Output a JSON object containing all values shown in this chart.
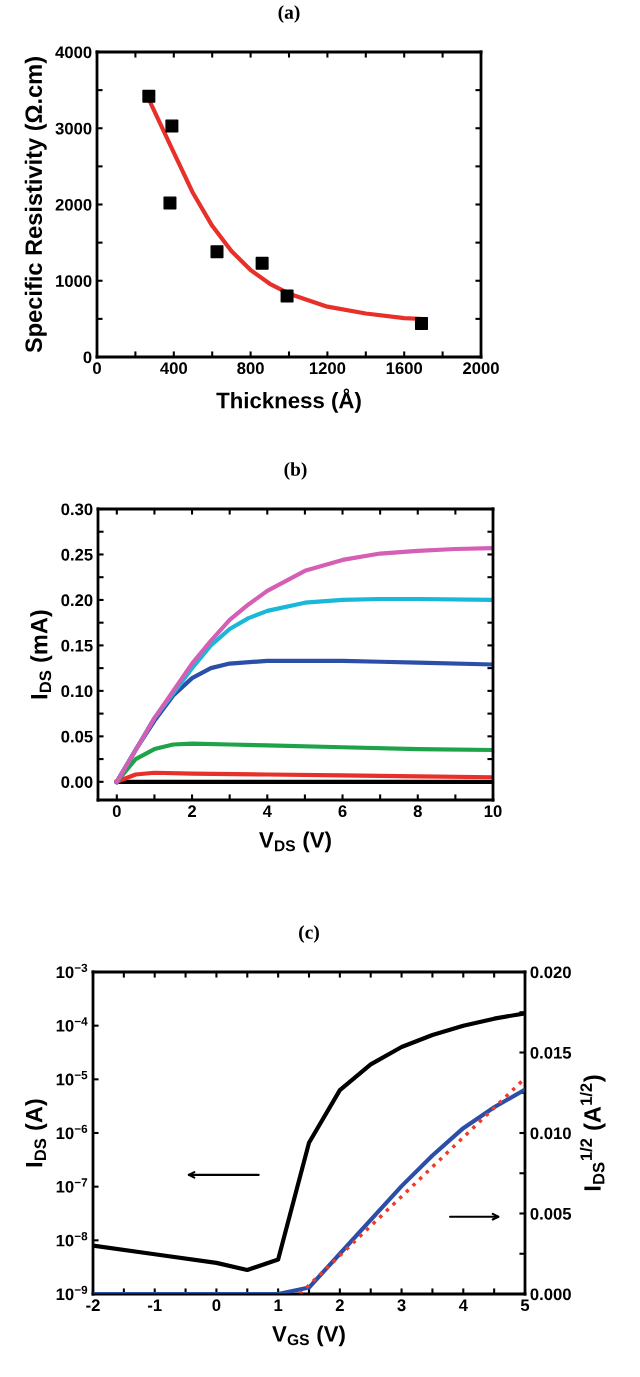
{
  "chart_data": [
    {
      "type": "scatter",
      "title": "(a)",
      "xlabel": "Thickness (Å)",
      "ylabel": "Specific Resistivity (Ω.cm)",
      "grid": false,
      "xlim": [
        0,
        2000
      ],
      "ylim": [
        0,
        4000
      ],
      "xticks": [
        0,
        {
          "value": 200,
          "label": null
        },
        400,
        {
          "value": 600,
          "label": null
        },
        800,
        {
          "value": 1000,
          "label": null
        },
        1200,
        {
          "value": 1400,
          "label": null
        },
        1600,
        {
          "value": 1800,
          "label": null
        },
        2000
      ],
      "yticks": [
        0,
        {
          "value": 500,
          "label": null
        },
        1000,
        {
          "value": 1500,
          "label": null
        },
        2000,
        {
          "value": 2500,
          "label": null
        },
        3000,
        {
          "value": 3500,
          "label": null
        },
        4000
      ],
      "series": [
        {
          "type": "scatter",
          "marker": "square",
          "color": "#000000",
          "x": [
            270,
            390,
            380,
            625,
            860,
            990,
            1690
          ],
          "values": [
            3420,
            3030,
            2020,
            1380,
            1230,
            800,
            440
          ]
        },
        {
          "type": "line",
          "marker": "none",
          "color": "#e8302a",
          "x": [
            270,
            350,
            400,
            500,
            600,
            700,
            800,
            900,
            1000,
            1200,
            1400,
            1600,
            1690
          ],
          "values": [
            3380,
            2950,
            2680,
            2150,
            1720,
            1390,
            1140,
            960,
            830,
            660,
            570,
            510,
            500
          ]
        }
      ]
    },
    {
      "type": "line",
      "title": "(b)",
      "xlabel": "V$_{DS}$ (V)",
      "ylabel": "I$_{DS}$ (mA)",
      "grid": false,
      "marker": "none",
      "line_style": "solid",
      "xlim": [
        -0.5,
        10
      ],
      "ylim": [
        -0.02,
        0.3
      ],
      "xticks": [
        0,
        {
          "value": 1,
          "label": null
        },
        2,
        {
          "value": 3,
          "label": null
        },
        4,
        {
          "value": 5,
          "label": null
        },
        6,
        {
          "value": 7,
          "label": null
        },
        8,
        {
          "value": 9,
          "label": null
        },
        10
      ],
      "yticks": [
        {
          "value": 0,
          "label": "0.00"
        },
        {
          "value": 0.025,
          "label": null
        },
        {
          "value": 0.05,
          "label": "0.05"
        },
        {
          "value": 0.075,
          "label": null
        },
        {
          "value": 0.1,
          "label": "0.10"
        },
        {
          "value": 0.125,
          "label": null
        },
        {
          "value": 0.15,
          "label": "0.15"
        },
        {
          "value": 0.175,
          "label": null
        },
        {
          "value": 0.2,
          "label": "0.20"
        },
        {
          "value": 0.225,
          "label": null
        },
        {
          "value": 0.25,
          "label": "0.25"
        },
        {
          "value": 0.275,
          "label": null
        },
        {
          "value": 0.3,
          "label": "0.30"
        }
      ],
      "series": [
        {
          "color": "#000000",
          "x": [
            0,
            10
          ],
          "values": [
            0,
            0
          ]
        },
        {
          "color": "#e8302a",
          "x": [
            0,
            0.5,
            1,
            2,
            4,
            6,
            8,
            10
          ],
          "values": [
            0,
            0.008,
            0.01,
            0.009,
            0.008,
            0.007,
            0.006,
            0.005
          ]
        },
        {
          "color": "#1fa34a",
          "x": [
            0,
            0.5,
            1,
            1.5,
            2,
            3,
            4,
            6,
            8,
            10
          ],
          "values": [
            0,
            0.025,
            0.036,
            0.041,
            0.042,
            0.041,
            0.04,
            0.038,
            0.036,
            0.035
          ]
        },
        {
          "color": "#2b4fa8",
          "x": [
            0,
            0.5,
            1,
            1.5,
            2,
            2.5,
            3,
            4,
            5,
            6,
            7,
            8,
            10
          ],
          "values": [
            0,
            0.035,
            0.067,
            0.095,
            0.114,
            0.125,
            0.13,
            0.133,
            0.133,
            0.133,
            0.132,
            0.131,
            0.129
          ]
        },
        {
          "color": "#1ab8d8",
          "x": [
            0,
            1,
            2,
            2.5,
            3,
            3.5,
            4,
            5,
            6,
            7,
            8,
            10
          ],
          "values": [
            0,
            0.07,
            0.125,
            0.15,
            0.168,
            0.18,
            0.188,
            0.197,
            0.2,
            0.201,
            0.201,
            0.2
          ]
        },
        {
          "color": "#d45fb5",
          "x": [
            0,
            0.5,
            1,
            1.5,
            2,
            2.5,
            3,
            3.5,
            4,
            5,
            6,
            7,
            8,
            9,
            10
          ],
          "values": [
            0,
            0.035,
            0.07,
            0.1,
            0.13,
            0.155,
            0.178,
            0.195,
            0.21,
            0.232,
            0.244,
            0.251,
            0.254,
            0.256,
            0.257
          ]
        }
      ]
    },
    {
      "type": "line",
      "title": "(c)",
      "xlabel": "V$_{GS}$ (V)",
      "ylabel": "I$_{DS}$ (A)",
      "y2label": "I$_{DS}$$^{1/2}$ (A$^{1/2}$)",
      "log": "y",
      "grid": false,
      "marker": "none",
      "xlim": [
        -2,
        5
      ],
      "ylim": [
        1e-09,
        0.001
      ],
      "y2lim": [
        0,
        0.02
      ],
      "xticks": [
        -2,
        {
          "value": -1.5,
          "label": null
        },
        -1,
        {
          "value": -0.5,
          "label": null
        },
        0,
        {
          "value": 0.5,
          "label": null
        },
        1,
        {
          "value": 1.5,
          "label": null
        },
        2,
        {
          "value": 2.5,
          "label": null
        },
        3,
        {
          "value": 3.5,
          "label": null
        },
        4,
        {
          "value": 4.5,
          "label": null
        },
        5
      ],
      "yticks": [
        {
          "value": 1e-09,
          "label": "10$^{−9}$"
        },
        {
          "value": 1e-08,
          "label": "10$^{−8}$"
        },
        {
          "value": 1e-07,
          "label": "10$^{−7}$"
        },
        {
          "value": 1e-06,
          "label": "10$^{−6}$"
        },
        {
          "value": 1e-05,
          "label": "10$^{−5}$"
        },
        {
          "value": 0.0001,
          "label": "10$^{−4}$"
        },
        {
          "value": 0.001,
          "label": "10$^{−3}$"
        }
      ],
      "y2ticks": [
        {
          "value": 0,
          "label": "0.000"
        },
        {
          "value": 0.0025,
          "label": null
        },
        {
          "value": 0.005,
          "label": "0.005"
        },
        {
          "value": 0.0075,
          "label": null
        },
        {
          "value": 0.01,
          "label": "0.010"
        },
        {
          "value": 0.0125,
          "label": null
        },
        {
          "value": 0.015,
          "label": "0.015"
        },
        {
          "value": 0.0175,
          "label": null
        },
        {
          "value": 0.02,
          "label": "0.020"
        }
      ],
      "series": [
        {
          "color": "#000000",
          "line_style": "solid",
          "x": [
            -2,
            -1,
            0,
            0.5,
            1,
            1.5,
            2,
            2.5,
            3,
            3.5,
            4,
            4.5,
            5
          ],
          "values": [
            8e-09,
            5.5e-09,
            3.8e-09,
            2.8e-09,
            4.4e-09,
            6.6e-07,
            6.3e-06,
            1.9e-05,
            4e-05,
            6.7e-05,
            0.0001,
            0.000135,
            0.00017
          ]
        },
        {
          "color": "#2b4fa8",
          "axis": "y2",
          "line_style": "solid",
          "x": [
            -2,
            1,
            1.5,
            2,
            2.5,
            3,
            3.5,
            4,
            4.5,
            5
          ],
          "values": [
            0,
            0,
            0.0004,
            0.0025,
            0.0046,
            0.0067,
            0.0086,
            0.0103,
            0.0116,
            0.0127
          ]
        },
        {
          "color": "#f03a2a",
          "axis": "y2",
          "line_style": "dotted",
          "x": [
            1.35,
            5
          ],
          "values": [
            0,
            0.0134
          ]
        }
      ]
    }
  ]
}
